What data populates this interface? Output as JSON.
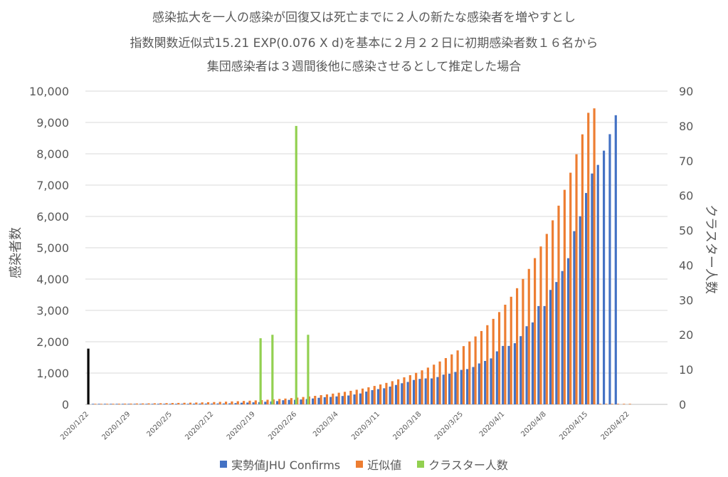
{
  "title_lines": [
    "感染拡大を一人の感染が回復又は死亡までに２人の新たな感染者を増やすとし",
    "指数関数近似式15.21 EXP(0.076 X d)を基本に２月２２日に初期感染者数１６名から",
    "集団感染者は３週間後他に感染させるとして推定した場合"
  ],
  "colors": {
    "actual": "#4472C4",
    "approx": "#ED7D31",
    "cluster": "#92D050",
    "initial": "#000000",
    "grid": "#d9d9d9",
    "text": "#595959"
  },
  "chart_data": {
    "type": "bar",
    "start_date": "2020/1/22",
    "x_tick_labels": [
      "2020/1/22",
      "2020/1/29",
      "2020/2/5",
      "2020/2/12",
      "2020/2/19",
      "2020/2/26",
      "2020/3/4",
      "2020/3/11",
      "2020/3/18",
      "2020/3/25",
      "2020/4/1",
      "2020/4/8",
      "2020/4/15",
      "2020/4/22"
    ],
    "xlim_days": [
      0,
      98
    ],
    "ylabel": "感染者数",
    "ylim": [
      0,
      10000
    ],
    "y_ticks": [
      "0",
      "1,000",
      "2,000",
      "3,000",
      "4,000",
      "5,000",
      "6,000",
      "7,000",
      "8,000",
      "9,000",
      "10,000"
    ],
    "y2label": "クラスター人数",
    "y2lim": [
      0,
      90
    ],
    "y2_ticks": [
      "0",
      "10",
      "20",
      "30",
      "40",
      "50",
      "60",
      "70",
      "80",
      "90"
    ],
    "legend": [
      "実勢値JHU Confirms",
      "近似値",
      "クラスター人数"
    ],
    "initial_bar": {
      "day": 0,
      "value": 1780
    },
    "cluster_series": {
      "name": "クラスター人数",
      "points": [
        {
          "day": 29,
          "value": 19
        },
        {
          "day": 31,
          "value": 20
        },
        {
          "day": 35,
          "value": 80
        },
        {
          "day": 37,
          "value": 20
        }
      ]
    },
    "actual_series": {
      "name": "実勢値JHU Confirms",
      "start_day": 1,
      "values": [
        2,
        2,
        2,
        2,
        4,
        4,
        4,
        7,
        8,
        12,
        15,
        20,
        20,
        20,
        20,
        20,
        20,
        25,
        26,
        26,
        26,
        28,
        29,
        33,
        41,
        53,
        59,
        66,
        73,
        84,
        93,
        105,
        132,
        144,
        146,
        156,
        171,
        189,
        210,
        230,
        239,
        254,
        268,
        284,
        317,
        349,
        408,
        455,
        488,
        514,
        568,
        620,
        675,
        716,
        780,
        814,
        829,
        829,
        873,
        950,
        979,
        1036,
        1101,
        1128,
        1193,
        1307,
        1387,
        1468,
        1693,
        1866,
        1866,
        1953,
        2178,
        2495,
        2617,
        3139,
        3139,
        3654,
        3906,
        4257,
        4667,
        5530,
        6005,
        6748,
        7370,
        7645,
        8100,
        8626,
        9231
      ]
    },
    "approx_series": {
      "name": "近似値",
      "start_day": 1,
      "values": [
        16,
        17,
        19,
        20,
        22,
        24,
        25,
        28,
        30,
        32,
        35,
        37,
        40,
        44,
        47,
        51,
        55,
        59,
        64,
        69,
        74,
        80,
        87,
        94,
        101,
        109,
        118,
        127,
        137,
        148,
        160,
        173,
        186,
        201,
        217,
        235,
        253,
        273,
        295,
        319,
        344,
        372,
        401,
        433,
        468,
        505,
        545,
        589,
        636,
        686,
        741,
        800,
        864,
        933,
        1007,
        1087,
        1174,
        1268,
        1369,
        1478,
        1596,
        1723,
        1860,
        2009,
        2169,
        2342,
        2528,
        2730,
        2947,
        3182,
        3436,
        3709,
        4005,
        4324,
        4669,
        5041,
        5442,
        5876,
        6344,
        6850,
        7396,
        7985,
        8621,
        9308,
        9450,
        1,
        1,
        1,
        1,
        1,
        1
      ]
    }
  }
}
